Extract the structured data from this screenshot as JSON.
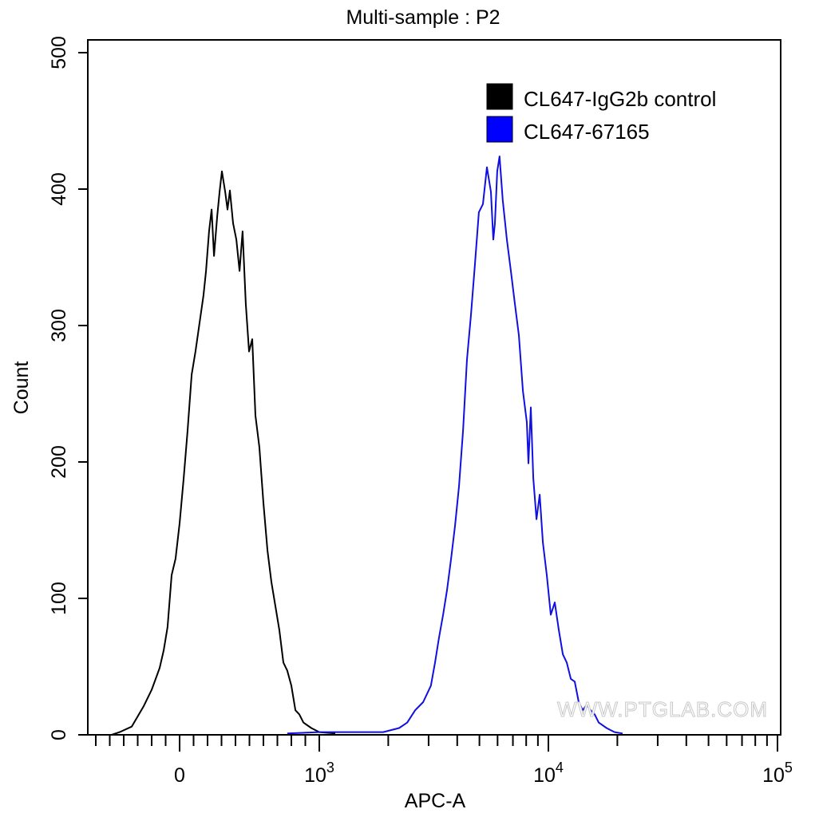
{
  "chart_data": {
    "type": "line",
    "title": "Multi-sample : P2",
    "xlabel": "APC-A",
    "ylabel": "Count",
    "x_scale": "biexponential",
    "xlim": [
      -650,
      100000
    ],
    "ylim": [
      0,
      500
    ],
    "y_ticks": [
      0,
      100,
      200,
      300,
      400,
      500
    ],
    "x_major_ticks": [
      {
        "value": 0,
        "base": "0",
        "exp": ""
      },
      {
        "value": 1000,
        "base": "10",
        "exp": "3"
      },
      {
        "value": 10000,
        "base": "10",
        "exp": "4"
      },
      {
        "value": 100000,
        "base": "10",
        "exp": "5"
      }
    ],
    "grid": false,
    "legend_position": "top-right",
    "watermark": "WWW.PTGLAB.COM",
    "series": [
      {
        "name": "CL647-IgG2b control",
        "color": "#000000",
        "x": [
          -486,
          -429,
          -343,
          -257,
          -200,
          -143,
          -114,
          -86,
          -57,
          -29,
          0,
          29,
          57,
          86,
          114,
          143,
          171,
          189,
          211,
          229,
          246,
          269,
          286,
          303,
          326,
          343,
          360,
          383,
          406,
          429,
          451,
          474,
          497,
          520,
          543,
          571,
          600,
          629,
          657,
          686,
          714,
          743,
          771,
          800,
          829,
          857,
          886,
          943,
          1000,
          1174
        ],
        "y": [
          0,
          2,
          6,
          21,
          33,
          49,
          62,
          79,
          117,
          129,
          155,
          188,
          223,
          264,
          281,
          302,
          322,
          340,
          369,
          385,
          351,
          380,
          398,
          413,
          398,
          385,
          399,
          375,
          363,
          340,
          369,
          316,
          281,
          290,
          234,
          211,
          170,
          135,
          112,
          94,
          77,
          53,
          47,
          36,
          18,
          15,
          9,
          5,
          2,
          1
        ]
      },
      {
        "name": "CL647-67165",
        "color": "#0000ff",
        "x": [
          771,
          1000,
          1380,
          1900,
          2230,
          2420,
          2620,
          2840,
          3070,
          3200,
          3330,
          3470,
          3610,
          3760,
          3910,
          4070,
          4240,
          4410,
          4590,
          4780,
          4970,
          5180,
          5390,
          5610,
          5750,
          5840,
          5980,
          6120,
          6320,
          6590,
          6860,
          7140,
          7430,
          7740,
          8050,
          8180,
          8380,
          8590,
          8870,
          9160,
          9460,
          9840,
          10240,
          10660,
          11100,
          11560,
          12030,
          12530,
          13030,
          13560,
          14120,
          14690,
          15300,
          15920,
          16580,
          17950,
          19450,
          21090
        ],
        "y": [
          1,
          2,
          2,
          2,
          5,
          9,
          18,
          24,
          36,
          53,
          71,
          88,
          106,
          129,
          153,
          182,
          223,
          275,
          307,
          345,
          383,
          389,
          416,
          398,
          363,
          375,
          413,
          424,
          392,
          363,
          340,
          316,
          293,
          252,
          229,
          199,
          240,
          188,
          158,
          176,
          141,
          117,
          88,
          97,
          77,
          59,
          53,
          41,
          39,
          24,
          18,
          22,
          18,
          15,
          9,
          5,
          2,
          1
        ]
      }
    ]
  }
}
